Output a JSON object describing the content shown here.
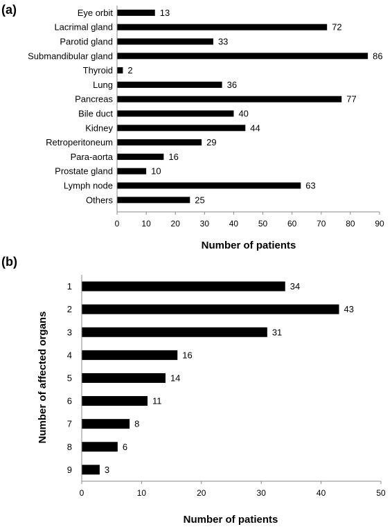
{
  "chart_data": [
    {
      "panel": "(a)",
      "type": "bar",
      "orientation": "horizontal",
      "categories": [
        "Eye orbit",
        "Lacrimal gland",
        "Parotid gland",
        "Submandibular gland",
        "Thyroid",
        "Lung",
        "Pancreas",
        "Bile duct",
        "Kidney",
        "Retroperitoneum",
        "Para-aorta",
        "Prostate gland",
        "Lymph node",
        "Others"
      ],
      "values": [
        13,
        72,
        33,
        86,
        2,
        36,
        77,
        40,
        44,
        29,
        16,
        10,
        63,
        25
      ],
      "xlabel": "Number of patients",
      "ylabel": "",
      "xlim": [
        0,
        90
      ],
      "xticks": [
        0,
        10,
        20,
        30,
        40,
        50,
        60,
        70,
        80,
        90
      ],
      "grid": false,
      "bar_color": "#000000"
    },
    {
      "panel": "(b)",
      "type": "bar",
      "orientation": "horizontal",
      "categories": [
        "1",
        "2",
        "3",
        "4",
        "5",
        "6",
        "7",
        "8",
        "9"
      ],
      "values": [
        34,
        43,
        31,
        16,
        14,
        11,
        8,
        6,
        3
      ],
      "xlabel": "Number of patients",
      "ylabel": "Number of affected organs",
      "xlim": [
        0,
        50
      ],
      "xticks": [
        0,
        10,
        20,
        30,
        40,
        50
      ],
      "grid": false,
      "bar_color": "#000000"
    }
  ]
}
